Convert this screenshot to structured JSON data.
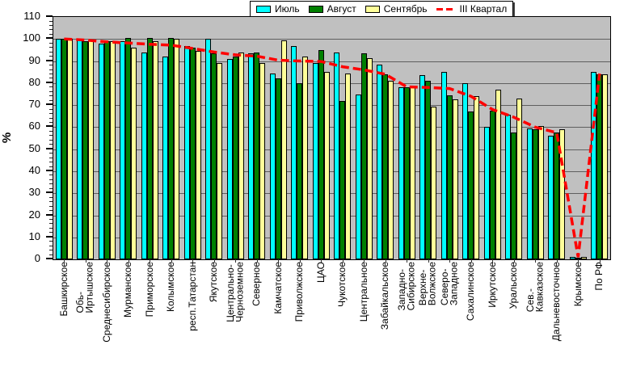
{
  "chart_data": {
    "type": "bar",
    "title": "",
    "ylabel": "%",
    "ylim": [
      0,
      110
    ],
    "ytick_interval": 10,
    "ytick_minor_interval": 2,
    "grid": true,
    "plot_bg": "#C0C0C0",
    "page_bg": "#FFFFFF",
    "legend_position": "top-center",
    "categories": [
      "Башкирское",
      "Обь-\nИртышское",
      "Среднесибирское",
      "Мурманское",
      "Приморское",
      "Колымское",
      "респ.Татарстан",
      "Якутское",
      "Центрально-\nЧерноземное",
      "Северное",
      "Камчатское",
      "Приволжское",
      "ЦАО",
      "Чукотское",
      "Центральное",
      "Забайкальское",
      "Западно-\nСибирское",
      "Верхне-\nВолжское",
      "Северо-\nЗападное",
      "Сахалинское",
      "Иркутское",
      "Уральское",
      "Сев.-\nКавказское",
      "Дальневосточное",
      "Крымское",
      "По РФ"
    ],
    "series": [
      {
        "name": "Июль",
        "kind": "bar",
        "color": "#00FFFF",
        "values": [
          100,
          100,
          98,
          99,
          94,
          92,
          97,
          100,
          91,
          93.5,
          84.5,
          97,
          89,
          94,
          75,
          88.5,
          78,
          83.5,
          85,
          80,
          60,
          65.5,
          59.5,
          56,
          1,
          85
        ]
      },
      {
        "name": "Август",
        "kind": "bar",
        "color": "#008000",
        "values": [
          100,
          99,
          99,
          100.5,
          100.5,
          100.5,
          96,
          93.5,
          92,
          94,
          82,
          80,
          95,
          72,
          93.5,
          84,
          78,
          81,
          74.5,
          67,
          67.5,
          57.5,
          59,
          57.5,
          0.5,
          84
        ]
      },
      {
        "name": "Сентябрь",
        "kind": "bar",
        "color": "#FFFF99",
        "values": [
          100,
          99.5,
          99,
          96,
          99,
          100,
          94.5,
          89,
          94,
          89,
          99.5,
          92,
          85,
          84.5,
          91.5,
          81,
          78,
          69.5,
          72.5,
          74,
          77,
          73,
          60.5,
          59,
          1,
          84
        ]
      },
      {
        "name": "III Квартал",
        "kind": "dashed-line",
        "color": "#FF0000",
        "values": [
          100,
          99.5,
          98.7,
          98.2,
          97.6,
          97.2,
          95.7,
          94.1,
          92.8,
          92.2,
          90.4,
          90,
          89.8,
          87.4,
          86,
          84,
          78.3,
          78,
          77.5,
          74,
          68,
          64.5,
          60,
          57.5,
          1,
          84.3
        ]
      }
    ]
  }
}
